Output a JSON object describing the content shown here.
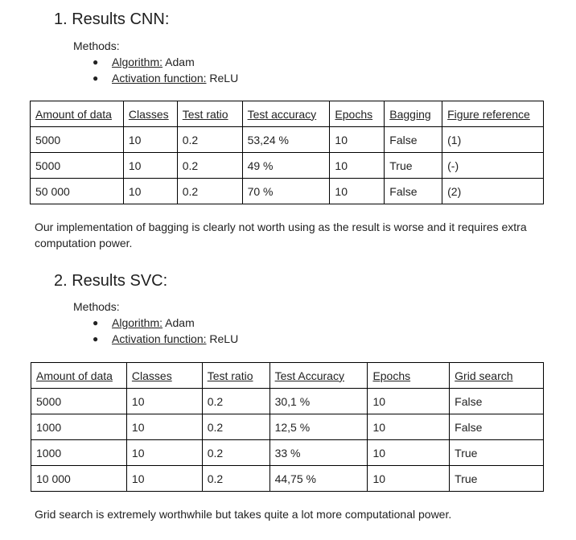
{
  "section1": {
    "heading": "1. Results CNN:",
    "methods_label": "Methods:",
    "methods": [
      {
        "key": "Algorithm:",
        "value": "Adam"
      },
      {
        "key": "Activation function:",
        "value": "ReLU"
      }
    ],
    "table": {
      "headers": [
        "Amount of data",
        "Classes",
        "Test ratio",
        "Test accuracy",
        "Epochs",
        "Bagging",
        "Figure reference"
      ],
      "rows": [
        [
          "5000",
          "10",
          "0.2",
          "53,24 %",
          "10",
          "False",
          "(1)"
        ],
        [
          "5000",
          "10",
          "0.2",
          "49 %",
          "10",
          "True",
          "(-)"
        ],
        [
          "50 000",
          "10",
          "0.2",
          "70 %",
          "10",
          "False",
          "(2)"
        ]
      ]
    },
    "paragraph": "Our implementation of bagging is clearly not worth using as the result is worse and it requires extra computation power."
  },
  "section2": {
    "heading": "2. Results SVC:",
    "methods_label": "Methods:",
    "methods": [
      {
        "key": "Algorithm:",
        "value": "Adam"
      },
      {
        "key": "Activation function:",
        "value": "ReLU"
      }
    ],
    "table": {
      "headers": [
        "Amount of data",
        "Classes",
        "Test ratio",
        "Test Accuracy",
        "Epochs",
        "Grid search"
      ],
      "rows": [
        [
          "5000",
          "10",
          "0.2",
          "30,1 %",
          "10",
          "False"
        ],
        [
          "1000",
          "10",
          "0.2",
          "12,5 %",
          "10",
          "False"
        ],
        [
          "1000",
          "10",
          "0.2",
          "33 %",
          "10",
          "True"
        ],
        [
          "10 000",
          "10",
          "0.2",
          "44,75 %",
          "10",
          "True"
        ]
      ]
    },
    "paragraph": "Grid search is extremely worthwhile but takes quite a lot more computational power."
  }
}
